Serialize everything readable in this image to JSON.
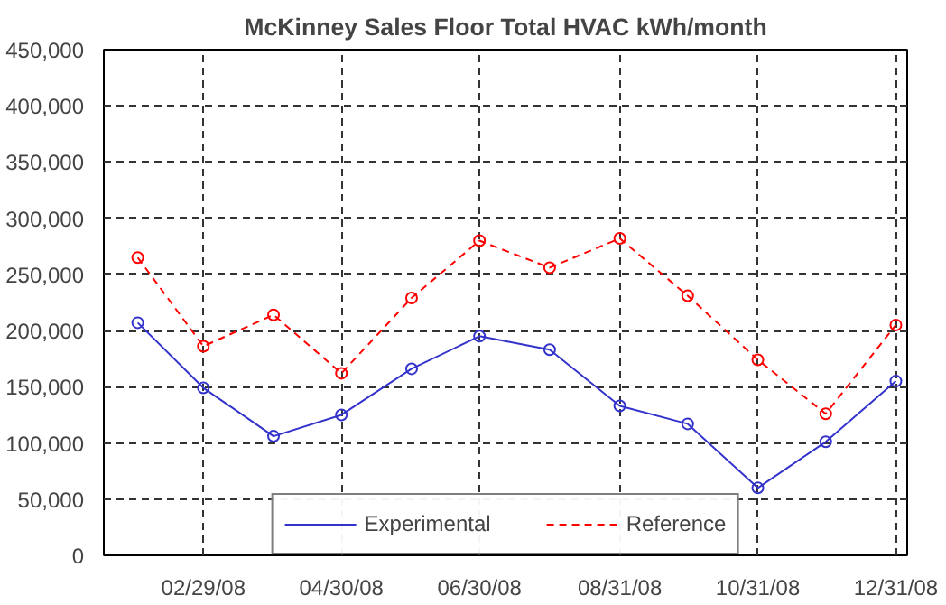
{
  "chart_data": {
    "type": "line",
    "title": "McKinney Sales Floor Total HVAC kWh/month",
    "x": [
      "2008-01-31",
      "2008-02-29",
      "2008-03-31",
      "2008-04-30",
      "2008-05-31",
      "2008-06-30",
      "2008-07-31",
      "2008-08-31",
      "2008-09-30",
      "2008-10-31",
      "2008-11-30",
      "2008-12-31"
    ],
    "series": [
      {
        "name": "Experimental",
        "color": "#3333cc",
        "line_style": "solid",
        "values": [
          207000,
          149000,
          106000,
          125000,
          166000,
          195000,
          183000,
          133000,
          117000,
          60000,
          101000,
          155000
        ]
      },
      {
        "name": "Reference",
        "color": "#ff0000",
        "line_style": "dashed",
        "values": [
          265000,
          186000,
          214000,
          162000,
          229000,
          280000,
          256000,
          282000,
          231000,
          174000,
          126000,
          205000
        ]
      }
    ],
    "xlim": [
      "2008-01-16",
      "2009-01-05"
    ],
    "xticks": [
      {
        "value": "2008-02-29",
        "label": "02/29/08"
      },
      {
        "value": "2008-04-30",
        "label": "04/30/08"
      },
      {
        "value": "2008-06-30",
        "label": "06/30/08"
      },
      {
        "value": "2008-08-31",
        "label": "08/31/08"
      },
      {
        "value": "2008-10-31",
        "label": "10/31/08"
      },
      {
        "value": "2008-12-31",
        "label": "12/31/08"
      }
    ],
    "ylim": [
      0,
      450000
    ],
    "yticks": [
      {
        "value": 0,
        "label": "0"
      },
      {
        "value": 50000,
        "label": "50,000"
      },
      {
        "value": 100000,
        "label": "100,000"
      },
      {
        "value": 150000,
        "label": "150,000"
      },
      {
        "value": 200000,
        "label": "200,000"
      },
      {
        "value": 250000,
        "label": "250,000"
      },
      {
        "value": 300000,
        "label": "300,000"
      },
      {
        "value": 350000,
        "label": "350,000"
      },
      {
        "value": 400000,
        "label": "400,000"
      },
      {
        "value": 450000,
        "label": "450,000"
      }
    ],
    "grid": true,
    "legend": "bottom",
    "marker": "circle"
  }
}
